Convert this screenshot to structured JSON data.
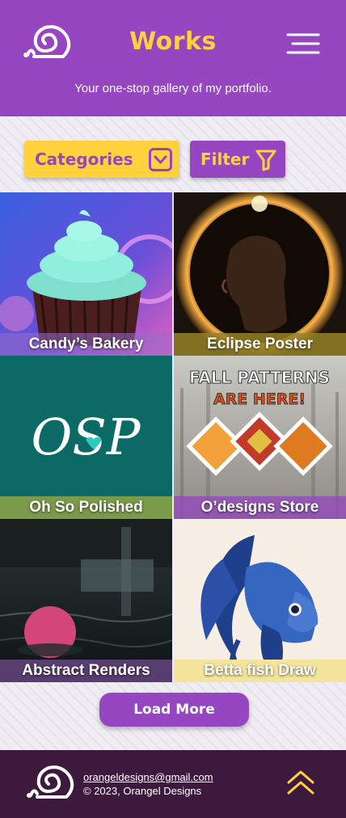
{
  "header": {
    "title": "Works",
    "tagline": "Your one-stop gallery of my portfolio.",
    "logo_icon": "snail-swirl-icon",
    "menu_icon": "hamburger-menu-icon"
  },
  "controls": {
    "categories_label": "Categories",
    "categories_icon": "chevron-down-icon",
    "filter_label": "Filter",
    "filter_icon": "funnel-icon"
  },
  "gallery": {
    "items": [
      {
        "caption": "Candy’s Bakery"
      },
      {
        "caption": "Eclipse Poster"
      },
      {
        "caption": "Oh So Polished",
        "logo_text": "OSP"
      },
      {
        "caption": "O’designs Store",
        "banner_line1": "FALL PATTERNS",
        "banner_line2": "ARE HERE!"
      },
      {
        "caption": "Abstract Renders"
      },
      {
        "caption": "Betta fish Draw"
      }
    ]
  },
  "load_more_label": "Load More",
  "footer": {
    "email": "orangeldesigns@gmail.com",
    "copyright": "© 2023, Orangel Designs",
    "back_to_top_icon": "double-chevron-up-icon"
  },
  "colors": {
    "brand_purple": "#9646c0",
    "accent_yellow": "#ffd23d",
    "footer_bg": "#3d1a3d",
    "page_bg": "#efedf3"
  }
}
